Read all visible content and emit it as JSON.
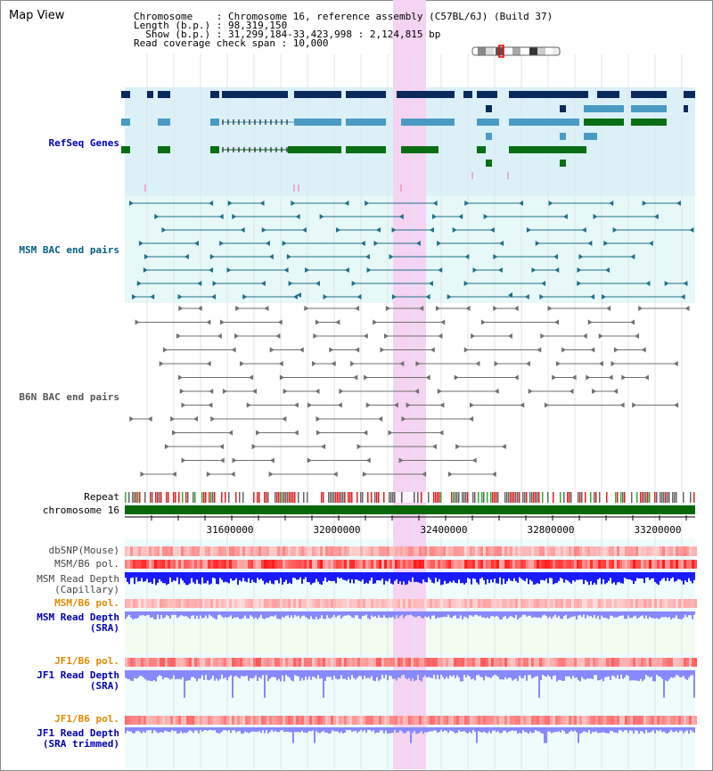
{
  "title": "Map View",
  "info": {
    "line1": "Chromosome    : Chromosome 16, reference assembly (C57BL/6J) (Build 37)",
    "line2": "Length (b.p.) : 98,319,150",
    "line3": "  Show (b.p.) : 31,299,184-33,423,998 : 2,124,815 bp",
    "line4": "Read coverage check span : 10,000"
  },
  "tracks": {
    "refseq": "RefSeq Genes",
    "msm_bac": "MSM BAC end pairs",
    "b6n_bac": "B6N BAC end pairs",
    "repeat": "Repeat",
    "chromosome": "chromosome 16",
    "dbsnp": "dbSNP(Mouse)",
    "msm_b6_pol": "MSM/B6 pol.",
    "msm_read_depth_cap_1": "MSM Read Depth",
    "msm_read_depth_cap_2": "(Capillary)",
    "msm_b6_pol_2": "MSM/B6 pol.",
    "msm_read_depth_sra_1": "MSM Read Depth",
    "msm_read_depth_sra_2": "(SRA)",
    "jf1_b6_pol": "JF1/B6 pol.",
    "jf1_read_depth_sra_1": "JF1 Read Depth",
    "jf1_read_depth_sra_2": "(SRA)",
    "jf1_b6_pol_2": "JF1/B6 pol.",
    "jf1_read_depth_trim_1": "JF1 Read Depth",
    "jf1_read_depth_trim_2": "(SRA trimmed)"
  },
  "axis": {
    "ticks": [
      "31600000",
      "32000000",
      "32400000",
      "32800000",
      "33200000"
    ]
  },
  "colors": {
    "highlight": "#f4d4f2",
    "refseq_bg": "#dcf0f8",
    "msm_bg": "#e6f8f8",
    "dark_gene": "#0a2a5c",
    "mid_gene": "#4a9ac4",
    "green_gene": "#0a6e14",
    "bac_teal": "#1f6f8a",
    "bac_gray": "#707070",
    "chrom_green": "#086808",
    "depth_blue": "#1a1aff",
    "depth_light": "#8888ff",
    "label_blue": "#0000b4",
    "label_orange": "#e08a00",
    "label_teal": "#006080"
  }
}
